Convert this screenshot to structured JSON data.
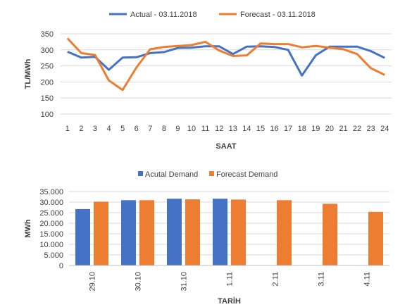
{
  "chart_data": [
    {
      "type": "line",
      "title": "",
      "xlabel": "SAAT",
      "ylabel": "TL/MWh",
      "ylim": [
        100,
        350
      ],
      "yticks": [
        "100",
        "150",
        "200",
        "250",
        "300",
        "350"
      ],
      "x": [
        "1",
        "2",
        "3",
        "4",
        "5",
        "6",
        "7",
        "8",
        "9",
        "10",
        "11",
        "12",
        "13",
        "14",
        "15",
        "16",
        "17",
        "18",
        "19",
        "20",
        "21",
        "22",
        "23",
        "24"
      ],
      "grid": true,
      "legend": "top",
      "series": [
        {
          "name": "Actual - 03.11.2018",
          "color": "#4472C4",
          "values": [
            294,
            276,
            278,
            238,
            276,
            277,
            290,
            293,
            306,
            307,
            311,
            311,
            287,
            310,
            311,
            309,
            300,
            220,
            283,
            310,
            310,
            310,
            296,
            275
          ]
        },
        {
          "name": "Forecast - 03.11.2018",
          "color": "#ED7D31",
          "values": [
            336,
            290,
            284,
            205,
            175,
            245,
            302,
            309,
            312,
            315,
            325,
            298,
            281,
            283,
            320,
            318,
            318,
            308,
            312,
            307,
            302,
            287,
            243,
            222
          ]
        }
      ]
    },
    {
      "type": "bar",
      "title": "",
      "xlabel": "TARİH",
      "ylabel": "MWh",
      "ylim": [
        0,
        35000
      ],
      "yticks": [
        "0",
        "5.000",
        "10.000",
        "15.000",
        "20.000",
        "25.000",
        "30.000",
        "35.000"
      ],
      "categories": [
        "29.10",
        "30.10",
        "31.10",
        "1.11",
        "2.11",
        "3.11",
        "4.11"
      ],
      "grid": true,
      "legend": "top",
      "series": [
        {
          "name": "Acutal Demand",
          "color": "#4472C4",
          "values": [
            26700,
            30900,
            31600,
            31600,
            null,
            null,
            null
          ]
        },
        {
          "name": "Forecast Demand",
          "color": "#ED7D31",
          "values": [
            30200,
            30900,
            31300,
            31200,
            30900,
            29200,
            25400
          ]
        }
      ]
    }
  ]
}
